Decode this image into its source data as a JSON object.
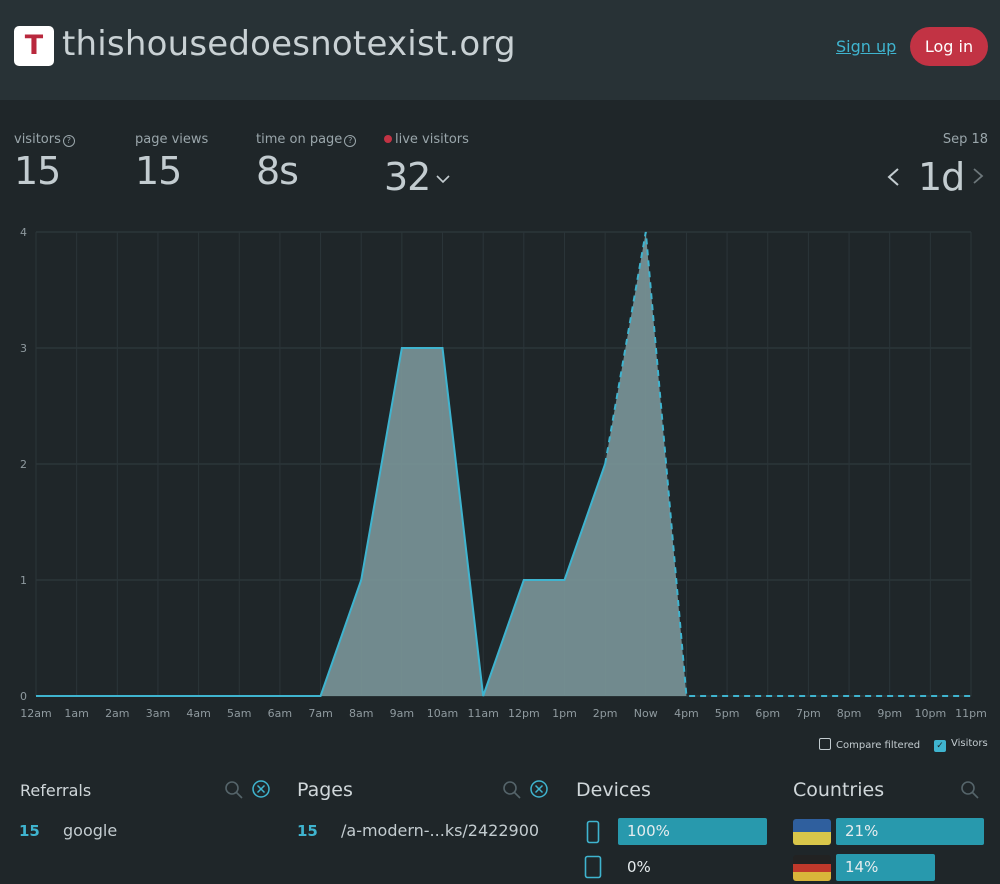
{
  "header": {
    "logo_letter": "T",
    "site_title": "thishousedoesnotexist.org",
    "signup_label": "Sign up",
    "login_label": "Log in"
  },
  "stats": {
    "visitors": {
      "label": "visitors",
      "value": "15"
    },
    "page_views": {
      "label": "page views",
      "value": "15"
    },
    "time_on_page": {
      "label": "time on page",
      "value": "8s"
    },
    "live_visitors": {
      "label": "live visitors",
      "value": "32"
    },
    "date": "Sep 18",
    "range": "1d"
  },
  "colors": {
    "accent": "#3fb4cf",
    "brand_red": "#c23344",
    "area_fill": "#7a9699",
    "bar": "#2899ad"
  },
  "chart_data": {
    "type": "area",
    "x": [
      "12am",
      "1am",
      "2am",
      "3am",
      "4am",
      "5am",
      "6am",
      "7am",
      "8am",
      "9am",
      "10am",
      "11am",
      "12pm",
      "1pm",
      "2pm",
      "Now",
      "4pm",
      "5pm",
      "6pm",
      "7pm",
      "8pm",
      "9pm",
      "10pm",
      "11pm"
    ],
    "series": [
      {
        "name": "Visitors",
        "values": [
          0,
          0,
          0,
          0,
          0,
          0,
          0,
          0,
          1,
          3,
          3,
          0,
          1,
          1,
          2,
          4,
          0,
          0,
          0,
          0,
          0,
          0,
          0,
          0
        ]
      }
    ],
    "y_ticks": [
      0,
      1,
      2,
      3,
      4
    ],
    "ylim": [
      0,
      4
    ],
    "dashed_from_index": 14,
    "grid": true
  },
  "legend": {
    "compare_label": "Compare filtered",
    "visitors_label": "Visitors"
  },
  "panels": {
    "referrals": {
      "title": "Referrals",
      "rows": [
        {
          "count": "15",
          "label": "google"
        }
      ]
    },
    "pages": {
      "title": "Pages",
      "rows": [
        {
          "count": "15",
          "label": "/a-modern-...ks/2422900"
        }
      ]
    },
    "devices": {
      "title": "Devices",
      "rows": [
        {
          "icon": "phone-icon",
          "percent": "100%",
          "value": 1.0
        },
        {
          "icon": "tablet-icon",
          "percent": "0%",
          "value": 0.0
        }
      ]
    },
    "countries": {
      "title": "Countries",
      "rows": [
        {
          "flag": "ukraine-flag",
          "percent": "21%",
          "value": 0.21
        },
        {
          "flag": "germany-flag",
          "percent": "14%",
          "value": 0.14
        }
      ]
    }
  }
}
